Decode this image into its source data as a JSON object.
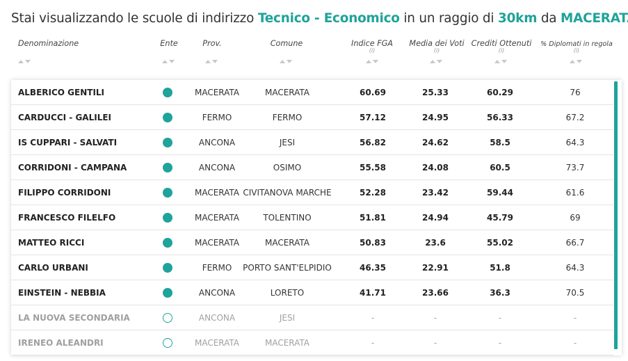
{
  "headline": {
    "prefix": "Stai visualizzando le scuole di indirizzo",
    "indirizzo": "Tecnico - Economico",
    "middle": "in un raggio di",
    "radius": "30km",
    "da": "da",
    "city": "MACERATA"
  },
  "columns": {
    "denominazione": "Denominazione",
    "ente": "Ente",
    "prov": "Prov.",
    "comune": "Comune",
    "indice_fga": "Indice FGA",
    "media_voti": "Media dei Voti",
    "crediti": "Crediti Ottenuti",
    "diplomati": "% Diplomati in regola",
    "info": "(i)"
  },
  "colors": {
    "accent": "#1fa39a",
    "inactive": "#a0a0a0"
  },
  "rows": [
    {
      "name": "ALBERICO GENTILI",
      "prov": "MACERATA",
      "comune": "MACERATA",
      "fga": "60.69",
      "media": "25.33",
      "crediti": "60.29",
      "diplomati": "76",
      "active": true
    },
    {
      "name": "CARDUCCI - GALILEI",
      "prov": "FERMO",
      "comune": "FERMO",
      "fga": "57.12",
      "media": "24.95",
      "crediti": "56.33",
      "diplomati": "67.2",
      "active": true
    },
    {
      "name": "IS CUPPARI - SALVATI",
      "prov": "ANCONA",
      "comune": "JESI",
      "fga": "56.82",
      "media": "24.62",
      "crediti": "58.5",
      "diplomati": "64.3",
      "active": true
    },
    {
      "name": "CORRIDONI - CAMPANA",
      "prov": "ANCONA",
      "comune": "OSIMO",
      "fga": "55.58",
      "media": "24.08",
      "crediti": "60.5",
      "diplomati": "73.7",
      "active": true
    },
    {
      "name": "FILIPPO CORRIDONI",
      "prov": "MACERATA",
      "comune": "CIVITANOVA MARCHE",
      "fga": "52.28",
      "media": "23.42",
      "crediti": "59.44",
      "diplomati": "61.6",
      "active": true
    },
    {
      "name": "FRANCESCO FILELFO",
      "prov": "MACERATA",
      "comune": "TOLENTINO",
      "fga": "51.81",
      "media": "24.94",
      "crediti": "45.79",
      "diplomati": "69",
      "active": true
    },
    {
      "name": "MATTEO RICCI",
      "prov": "MACERATA",
      "comune": "MACERATA",
      "fga": "50.83",
      "media": "23.6",
      "crediti": "55.02",
      "diplomati": "66.7",
      "active": true
    },
    {
      "name": "CARLO URBANI",
      "prov": "FERMO",
      "comune": "PORTO SANT'ELPIDIO",
      "fga": "46.35",
      "media": "22.91",
      "crediti": "51.8",
      "diplomati": "64.3",
      "active": true
    },
    {
      "name": "EINSTEIN - NEBBIA",
      "prov": "ANCONA",
      "comune": "LORETO",
      "fga": "41.71",
      "media": "23.66",
      "crediti": "36.3",
      "diplomati": "70.5",
      "active": true
    },
    {
      "name": "LA NUOVA SECONDARIA",
      "prov": "ANCONA",
      "comune": "JESI",
      "fga": "-",
      "media": "-",
      "crediti": "-",
      "diplomati": "-",
      "active": false
    },
    {
      "name": "IRENEO ALEANDRI",
      "prov": "MACERATA",
      "comune": "MACERATA",
      "fga": "-",
      "media": "-",
      "crediti": "-",
      "diplomati": "-",
      "active": false
    }
  ]
}
